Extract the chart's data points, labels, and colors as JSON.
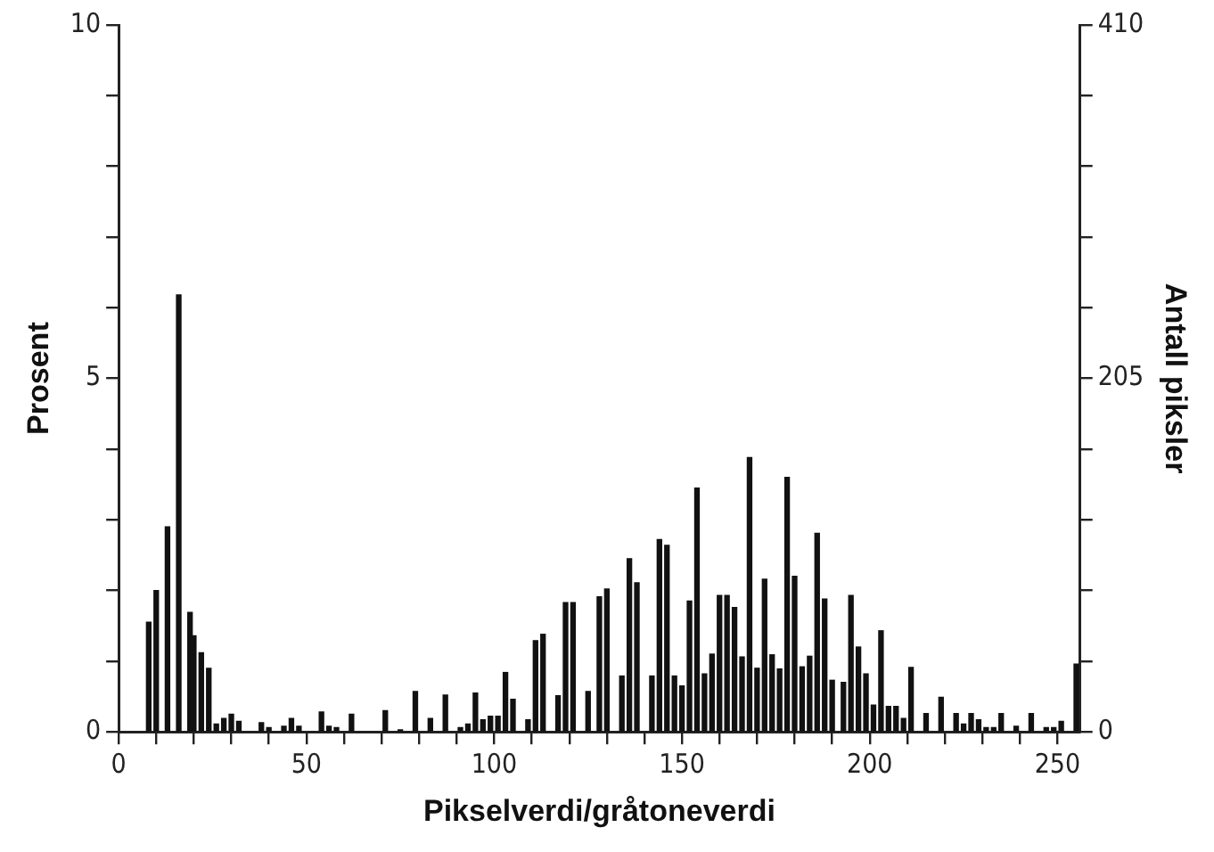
{
  "chart_data": {
    "type": "bar",
    "xlabel": "Pikselverdi/gråtoneverdi",
    "ylabel": "Prosent",
    "y2label": "Antall piksler",
    "x": [
      8,
      10,
      13,
      16,
      19,
      20,
      22,
      24,
      26,
      28,
      30,
      32,
      38,
      40,
      44,
      46,
      48,
      54,
      56,
      58,
      62,
      71,
      75,
      79,
      83,
      87,
      91,
      93,
      95,
      97,
      99,
      101,
      103,
      105,
      109,
      111,
      113,
      117,
      119,
      121,
      125,
      128,
      130,
      134,
      136,
      138,
      142,
      144,
      146,
      148,
      150,
      152,
      154,
      156,
      158,
      160,
      162,
      164,
      166,
      168,
      170,
      172,
      174,
      176,
      178,
      180,
      182,
      184,
      186,
      188,
      190,
      193,
      195,
      197,
      199,
      201,
      203,
      205,
      207,
      209,
      211,
      215,
      219,
      223,
      225,
      227,
      229,
      231,
      233,
      235,
      239,
      243,
      247,
      249,
      251,
      255
    ],
    "values": [
      1.55,
      2.0,
      2.9,
      6.18,
      1.69,
      1.36,
      1.12,
      0.9,
      0.11,
      0.19,
      0.25,
      0.15,
      0.13,
      0.06,
      0.08,
      0.19,
      0.08,
      0.28,
      0.08,
      0.06,
      0.25,
      0.3,
      0.03,
      0.57,
      0.19,
      0.52,
      0.06,
      0.11,
      0.55,
      0.17,
      0.22,
      0.22,
      0.84,
      0.46,
      0.17,
      1.29,
      1.38,
      0.51,
      1.83,
      1.83,
      0.57,
      1.91,
      2.02,
      0.79,
      2.45,
      2.11,
      0.79,
      2.72,
      2.64,
      0.79,
      0.65,
      1.85,
      3.45,
      0.82,
      1.1,
      1.93,
      1.93,
      1.76,
      1.06,
      3.88,
      0.9,
      2.16,
      1.09,
      0.89,
      3.6,
      2.2,
      0.92,
      1.07,
      2.81,
      1.88,
      0.73,
      0.7,
      1.93,
      1.2,
      0.82,
      0.38,
      1.43,
      0.36,
      0.36,
      0.19,
      0.91,
      0.26,
      0.49,
      0.26,
      0.11,
      0.26,
      0.17,
      0.06,
      0.06,
      0.26,
      0.08,
      0.26,
      0.06,
      0.06,
      0.15,
      0.96
    ],
    "color": "#111111",
    "xlim": [
      0,
      256
    ],
    "xticks": [
      0,
      {
        "value": 10,
        "label": null
      },
      {
        "value": 20,
        "label": null
      },
      {
        "value": 30,
        "label": null
      },
      {
        "value": 40,
        "label": null
      },
      50,
      {
        "value": 60,
        "label": null
      },
      {
        "value": 70,
        "label": null
      },
      {
        "value": 80,
        "label": null
      },
      {
        "value": 90,
        "label": null
      },
      100,
      {
        "value": 110,
        "label": null
      },
      {
        "value": 120,
        "label": null
      },
      {
        "value": 130,
        "label": null
      },
      {
        "value": 140,
        "label": null
      },
      150,
      {
        "value": 160,
        "label": null
      },
      {
        "value": 170,
        "label": null
      },
      {
        "value": 180,
        "label": null
      },
      {
        "value": 190,
        "label": null
      },
      200,
      {
        "value": 210,
        "label": null
      },
      {
        "value": 220,
        "label": null
      },
      {
        "value": 230,
        "label": null
      },
      {
        "value": 240,
        "label": null
      },
      250
    ],
    "ylim": [
      0,
      10
    ],
    "yticks": [
      0,
      {
        "value": 1,
        "label": null
      },
      {
        "value": 2,
        "label": null
      },
      {
        "value": 3,
        "label": null
      },
      {
        "value": 4,
        "label": null
      },
      5,
      {
        "value": 6,
        "label": null
      },
      {
        "value": 7,
        "label": null
      },
      {
        "value": 8,
        "label": null
      },
      {
        "value": 9,
        "label": null
      },
      10
    ],
    "y2lim": [
      0,
      410
    ],
    "y2ticks": [
      0,
      {
        "value": 41,
        "label": null
      },
      {
        "value": 82,
        "label": null
      },
      {
        "value": 123,
        "label": null
      },
      {
        "value": 164,
        "label": null
      },
      205,
      {
        "value": 246,
        "label": null
      },
      {
        "value": 287,
        "label": null
      },
      {
        "value": 328,
        "label": null
      },
      {
        "value": 369,
        "label": null
      },
      410
    ],
    "grid": false,
    "legend": false
  }
}
